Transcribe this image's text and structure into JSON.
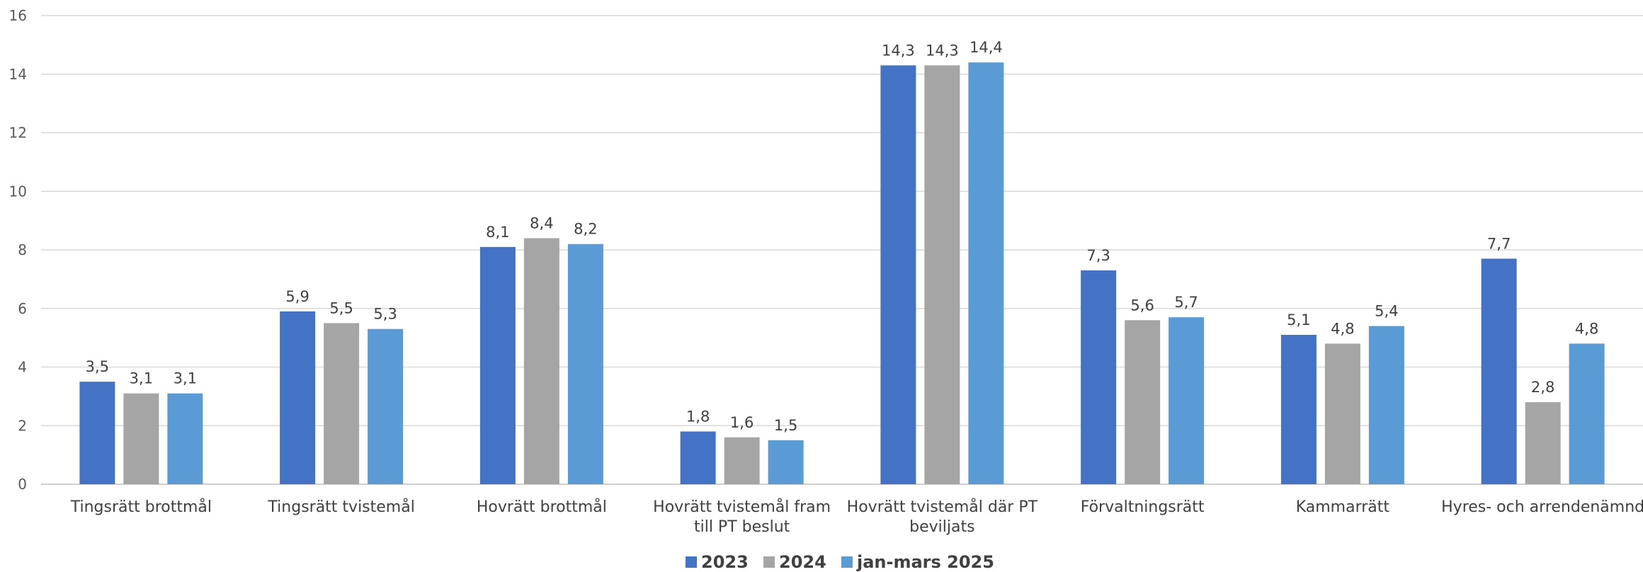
{
  "chart_data": {
    "type": "bar",
    "title": "",
    "xlabel": "",
    "ylabel": "",
    "ylim": [
      0,
      16
    ],
    "yticks": [
      0,
      2,
      4,
      6,
      8,
      10,
      12,
      14,
      16
    ],
    "grid": true,
    "legend_position": "bottom",
    "categories": [
      [
        "Tingsrätt brottmål"
      ],
      [
        "Tingsrätt tvistemål"
      ],
      [
        "Hovrätt brottmål"
      ],
      [
        "Hovrätt tvistemål fram",
        "till PT beslut"
      ],
      [
        "Hovrätt tvistemål där PT",
        "beviljats"
      ],
      [
        "Förvaltningsrätt"
      ],
      [
        "Kammarrätt"
      ],
      [
        "Hyres- och arrendenämnd"
      ]
    ],
    "series": [
      {
        "name": "2023",
        "color": "#4472c4",
        "values": [
          3.5,
          5.9,
          8.1,
          1.8,
          14.3,
          7.3,
          5.1,
          7.7
        ],
        "labels": [
          "3,5",
          "5,9",
          "8,1",
          "1,8",
          "14,3",
          "7,3",
          "5,1",
          "7,7"
        ]
      },
      {
        "name": "2024",
        "color": "#a5a5a5",
        "values": [
          3.1,
          5.5,
          8.4,
          1.6,
          14.3,
          5.6,
          4.8,
          2.8
        ],
        "labels": [
          "3,1",
          "5,5",
          "8,4",
          "1,6",
          "14,3",
          "5,6",
          "4,8",
          "2,8"
        ]
      },
      {
        "name": "jan-mars 2025",
        "color": "#5b9bd5",
        "values": [
          3.1,
          5.3,
          8.2,
          1.5,
          14.4,
          5.7,
          5.4,
          4.8
        ],
        "labels": [
          "3,1",
          "5,3",
          "8,2",
          "1,5",
          "14,4",
          "5,7",
          "5,4",
          "4,8"
        ]
      }
    ]
  }
}
